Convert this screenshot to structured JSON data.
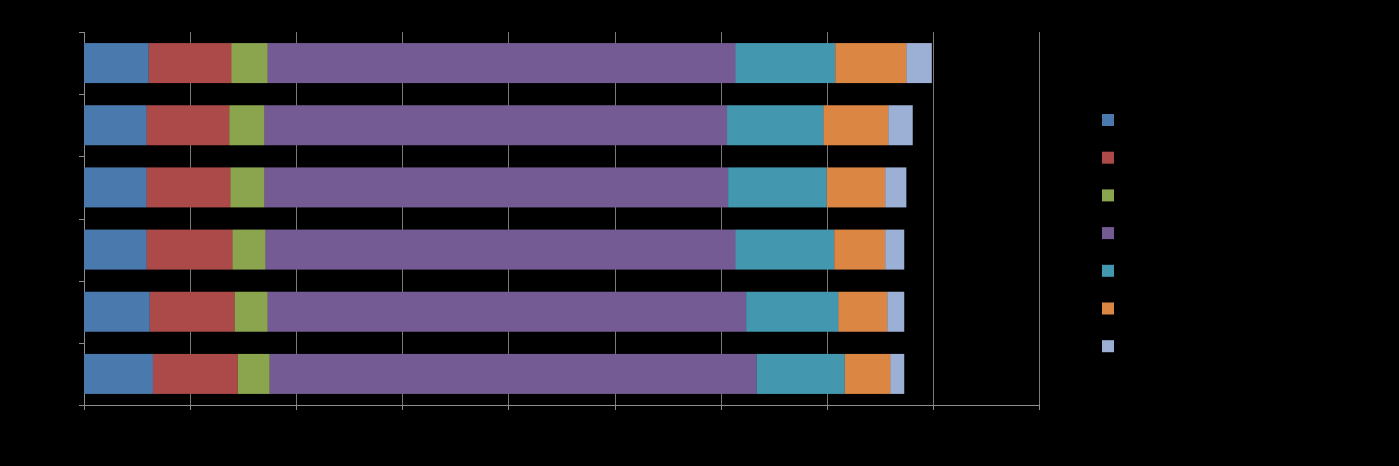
{
  "chart_data": {
    "type": "bar",
    "orientation": "horizontal",
    "stacked": true,
    "title": "",
    "xlabel": "",
    "ylabel": "",
    "xlim": [
      0,
      0.9
    ],
    "x_tick_values": [
      0,
      0.1,
      0.2,
      0.3,
      0.4,
      0.5,
      0.6,
      0.7,
      0.8,
      0.9
    ],
    "categories": [
      "",
      "",
      "",
      "",
      "",
      ""
    ],
    "grid": "vertical",
    "legend_position": "right",
    "series": [
      {
        "color": "#4a7aad",
        "values": [
          0.061,
          0.059,
          0.059,
          0.059,
          0.062,
          0.065
        ]
      },
      {
        "color": "#ab4a48",
        "values": [
          0.078,
          0.078,
          0.079,
          0.081,
          0.08,
          0.08
        ]
      },
      {
        "color": "#8aa54e",
        "values": [
          0.034,
          0.033,
          0.032,
          0.031,
          0.031,
          0.03
        ]
      },
      {
        "color": "#745b94",
        "values": [
          0.441,
          0.436,
          0.437,
          0.443,
          0.451,
          0.459
        ]
      },
      {
        "color": "#4398b0",
        "values": [
          0.094,
          0.091,
          0.093,
          0.093,
          0.087,
          0.083
        ]
      },
      {
        "color": "#dc8644",
        "values": [
          0.067,
          0.061,
          0.055,
          0.048,
          0.046,
          0.043
        ]
      },
      {
        "color": "#9cb0d6",
        "values": [
          0.024,
          0.023,
          0.02,
          0.018,
          0.016,
          0.013
        ]
      }
    ]
  }
}
